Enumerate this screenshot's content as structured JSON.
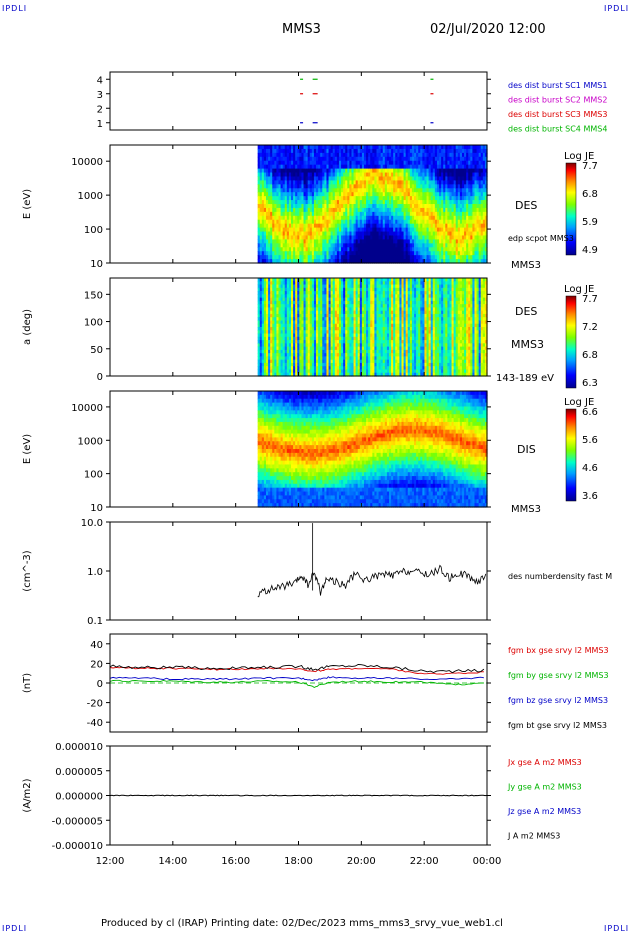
{
  "header": {
    "corner_tl": "IPDLI",
    "corner_tr": "IPDLI",
    "corner_bl": "IPDLI",
    "corner_br": "IPDLI",
    "spacecraft": "MMS3",
    "date": "02/Jul/2020 12:00"
  },
  "footer": {
    "credit": "Produced by cl (IRAP)   Printing date: 02/Dec/2023   mms_mms3_srvy_vue_web1.cl"
  },
  "colors": {
    "mms1": "#0000c8",
    "mms2": "#c800c8",
    "mms3": "#dc0000",
    "mms4": "#00b400",
    "bx": "#dc0000",
    "by": "#00b400",
    "bz": "#0000c8",
    "bt": "#000000"
  },
  "chart_data": [
    {
      "type": "scatter",
      "panel": "burst-availability",
      "y_ticks": [
        "4",
        "3",
        "2",
        "1"
      ],
      "ylim": [
        0.5,
        4.5
      ],
      "legend": [
        "des dist burst SC1 MMS1",
        "des dist burst SC2 MMS2",
        "des dist burst SC3 MMS3",
        "des dist burst SC4 MMS4"
      ],
      "series": [
        {
          "y": 4,
          "x": [
            18.05,
            18.45,
            22.2
          ]
        },
        {
          "y": 3,
          "x": [
            18.05,
            18.45,
            22.2
          ]
        },
        {
          "y": 1,
          "x": [
            18.05,
            18.45,
            22.2
          ]
        }
      ]
    },
    {
      "type": "heatmap",
      "panel": "des-energy",
      "ylabel": "E (eV)",
      "y_ticks": [
        "10000",
        "1000",
        "100",
        "10"
      ],
      "ylim": [
        10,
        30000
      ],
      "yscale": "log",
      "data_start": 16.7,
      "side_labels": [
        "DES",
        "edp scpot MMS3",
        "MMS3"
      ],
      "colorbar": {
        "title": "Log JE",
        "ticks": [
          "7.7",
          "6.8",
          "5.9",
          "4.9"
        ],
        "range": [
          4.9,
          7.7
        ]
      }
    },
    {
      "type": "heatmap",
      "panel": "des-pitch-angle",
      "ylabel": "a (deg)",
      "y_ticks": [
        "150",
        "100",
        "50",
        "0"
      ],
      "ylim": [
        0,
        180
      ],
      "data_start": 16.7,
      "side_labels": [
        "DES",
        "MMS3",
        "143-189 eV"
      ],
      "colorbar": {
        "title": "Log JE",
        "ticks": [
          "7.7",
          "7.2",
          "6.8",
          "6.3"
        ],
        "range": [
          6.3,
          7.7
        ]
      }
    },
    {
      "type": "heatmap",
      "panel": "dis-energy",
      "ylabel": "E (eV)",
      "y_ticks": [
        "10000",
        "1000",
        "100",
        "10"
      ],
      "ylim": [
        10,
        30000
      ],
      "yscale": "log",
      "data_start": 16.7,
      "side_labels": [
        "DIS",
        "MMS3"
      ],
      "colorbar": {
        "title": "Log JE",
        "ticks": [
          "6.6",
          "5.6",
          "4.6",
          "3.6"
        ],
        "range": [
          3.6,
          6.6
        ]
      }
    },
    {
      "type": "line",
      "panel": "density",
      "ylabel": "(cm^-3)",
      "y_ticks": [
        "10.0",
        "1.0",
        "0.1"
      ],
      "ylim": [
        0.1,
        10
      ],
      "yscale": "log",
      "legend": [
        "des numberdensity fast M"
      ],
      "x": [
        16.7,
        17.0,
        17.3,
        17.6,
        17.9,
        18.1,
        18.3,
        18.5,
        18.7,
        18.9,
        19.2,
        19.5,
        19.8,
        20.1,
        20.4,
        20.7,
        21.0,
        21.3,
        21.6,
        21.9,
        22.2,
        22.5,
        22.8,
        23.1,
        23.4,
        23.7,
        24.0
      ],
      "values": [
        0.35,
        0.4,
        0.45,
        0.5,
        0.55,
        0.8,
        0.5,
        0.9,
        0.35,
        0.7,
        0.6,
        0.5,
        0.85,
        0.65,
        0.75,
        0.85,
        0.8,
        0.95,
        1.0,
        0.9,
        0.85,
        1.1,
        0.7,
        0.9,
        0.8,
        0.55,
        0.9
      ]
    },
    {
      "type": "line",
      "panel": "magnetic-field",
      "ylabel": "(nT)",
      "y_ticks": [
        "40",
        "20",
        "0",
        "-20",
        "-40"
      ],
      "ylim": [
        -50,
        50
      ],
      "legend": [
        "fgm bx gse srvy l2 MMS3",
        "fgm by gse srvy l2 MMS3",
        "fgm bz gse srvy l2 MMS3",
        "fgm bt gse srvy l2 MMS3"
      ],
      "x": [
        12,
        13,
        14,
        15,
        16,
        17,
        18,
        18.5,
        19,
        20,
        21,
        22,
        23,
        24
      ],
      "series": [
        {
          "values": [
            16,
            15,
            15,
            14,
            14,
            15,
            14,
            12,
            14,
            15,
            14,
            9,
            10,
            11
          ]
        },
        {
          "values": [
            2,
            2,
            2,
            1,
            1,
            2,
            1,
            -4,
            1,
            2,
            1,
            1,
            -2,
            1
          ]
        },
        {
          "values": [
            5,
            5,
            4,
            4,
            4,
            5,
            5,
            3,
            6,
            5,
            5,
            4,
            4,
            6
          ]
        },
        {
          "values": [
            17,
            16,
            16,
            15,
            15,
            16,
            17,
            14,
            17,
            18,
            16,
            12,
            12,
            13
          ]
        }
      ]
    },
    {
      "type": "line",
      "panel": "current-density",
      "ylabel": "(A/m2)",
      "y_ticks": [
        "0.000010",
        "0.000005",
        "0.000000",
        "-0.000005",
        "-0.000010"
      ],
      "ylim": [
        -1e-05,
        1e-05
      ],
      "legend": [
        "Jx gse A m2 MMS3",
        "Jy gse A m2 MMS3",
        "Jz gse A m2 MMS3",
        "J A m2 MMS3"
      ],
      "x": [
        12,
        24
      ],
      "values": [
        0,
        0
      ]
    }
  ],
  "xaxis": {
    "ticks": [
      "12:00",
      "14:00",
      "16:00",
      "18:00",
      "20:00",
      "22:00",
      "00:00"
    ],
    "x": [
      12,
      14,
      16,
      18,
      20,
      22,
      24
    ]
  }
}
